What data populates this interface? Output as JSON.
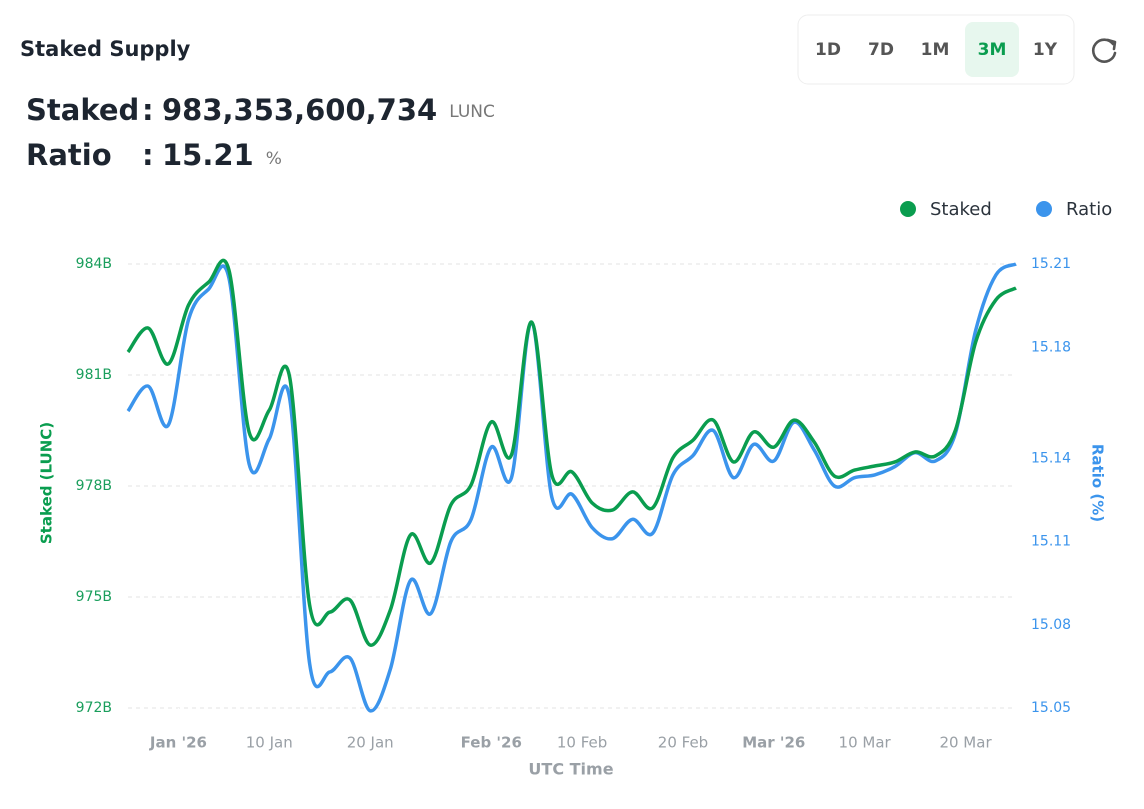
{
  "header": {
    "title": "Staked Supply",
    "ranges": [
      "1D",
      "7D",
      "1M",
      "3M",
      "1Y"
    ],
    "active_range": "3M"
  },
  "stats": {
    "staked_label": "Staked",
    "staked_sep": ":",
    "staked_value": "983,353,600,734",
    "staked_unit": "LUNC",
    "ratio_label": "Ratio",
    "ratio_sep": ":",
    "ratio_value": "15.21",
    "ratio_unit": "%"
  },
  "chart_data": {
    "type": "line",
    "x": [
      "2025-12-27",
      "2025-12-29",
      "2025-12-31",
      "2026-01-02",
      "2026-01-04",
      "2026-01-06",
      "2026-01-08",
      "2026-01-10",
      "2026-01-12",
      "2026-01-14",
      "2026-01-16",
      "2026-01-18",
      "2026-01-20",
      "2026-01-22",
      "2026-01-24",
      "2026-01-26",
      "2026-01-28",
      "2026-01-30",
      "2026-02-01",
      "2026-02-03",
      "2026-02-05",
      "2026-02-07",
      "2026-02-09",
      "2026-02-11",
      "2026-02-13",
      "2026-02-15",
      "2026-02-17",
      "2026-02-19",
      "2026-02-21",
      "2026-02-23",
      "2026-02-25",
      "2026-02-27",
      "2026-03-01",
      "2026-03-03",
      "2026-03-05",
      "2026-03-07",
      "2026-03-09",
      "2026-03-11",
      "2026-03-13",
      "2026-03-15",
      "2026-03-17",
      "2026-03-19",
      "2026-03-21",
      "2026-03-23",
      "2026-03-25"
    ],
    "series": [
      {
        "name": "Staked",
        "color": "#0a9d4f",
        "values": [
          981.62,
          982.27,
          981.3,
          982.89,
          983.51,
          983.84,
          979.46,
          980.05,
          980.97,
          974.78,
          974.59,
          974.92,
          973.7,
          974.65,
          976.68,
          975.92,
          977.49,
          978.03,
          979.73,
          978.84,
          982.43,
          978.3,
          978.38,
          977.54,
          977.35,
          977.84,
          977.41,
          978.76,
          979.24,
          979.78,
          978.65,
          979.46,
          979.05,
          979.78,
          979.19,
          978.27,
          978.43,
          978.54,
          978.65,
          978.92,
          978.81,
          979.51,
          981.89,
          983.03,
          983.35
        ]
      },
      {
        "name": "Ratio",
        "color": "#3b94ec",
        "axis": "y2",
        "values": [
          15.157,
          15.166,
          15.152,
          15.19,
          15.201,
          15.205,
          15.138,
          15.147,
          15.162,
          15.066,
          15.063,
          15.068,
          15.049,
          15.064,
          15.096,
          15.084,
          15.11,
          15.118,
          15.144,
          15.133,
          15.189,
          15.126,
          15.127,
          15.115,
          15.111,
          15.118,
          15.113,
          15.134,
          15.141,
          15.15,
          15.133,
          15.145,
          15.139,
          15.153,
          15.143,
          15.13,
          15.133,
          15.134,
          15.137,
          15.142,
          15.139,
          15.149,
          15.186,
          15.206,
          15.21
        ]
      }
    ],
    "xlim": [
      "2025-12-27",
      "2026-03-25"
    ],
    "xticks": [
      {
        "value": "2026-01-01",
        "label": "Jan '26"
      },
      {
        "value": "2026-01-10",
        "label": "10 Jan"
      },
      {
        "value": "2026-01-20",
        "label": "20 Jan"
      },
      {
        "value": "2026-02-01",
        "label": "Feb '26"
      },
      {
        "value": "2026-02-10",
        "label": "10 Feb"
      },
      {
        "value": "2026-02-20",
        "label": "20 Feb"
      },
      {
        "value": "2026-03-01",
        "label": "Mar '26"
      },
      {
        "value": "2026-03-10",
        "label": "10 Mar"
      },
      {
        "value": "2026-03-20",
        "label": "20 Mar"
      }
    ],
    "ylim": [
      972,
      984
    ],
    "yticks": [
      {
        "value": 972,
        "label": "972B"
      },
      {
        "value": 975,
        "label": "975B"
      },
      {
        "value": 978,
        "label": "978B"
      },
      {
        "value": 981,
        "label": "981B"
      },
      {
        "value": 984,
        "label": "984B"
      }
    ],
    "y2lim": [
      15.05,
      15.21
    ],
    "y2ticks": [
      15.05,
      15.08,
      15.11,
      15.14,
      15.18,
      15.21
    ],
    "ylabel": "Staked (LUNC)",
    "y2label": "Ratio (%)",
    "xlabel": "UTC Time",
    "grid": true,
    "legend": "top-right"
  }
}
